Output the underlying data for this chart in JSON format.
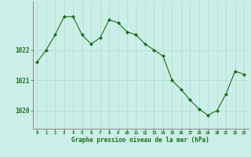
{
  "x": [
    0,
    1,
    2,
    3,
    4,
    5,
    6,
    7,
    8,
    9,
    10,
    11,
    12,
    13,
    14,
    15,
    16,
    17,
    18,
    19,
    20,
    21,
    22,
    23
  ],
  "y": [
    1021.6,
    1022.0,
    1022.5,
    1023.1,
    1023.1,
    1022.5,
    1022.2,
    1022.4,
    1023.0,
    1022.9,
    1022.6,
    1022.5,
    1022.2,
    1022.0,
    1021.8,
    1021.0,
    1020.7,
    1020.35,
    1020.05,
    1019.85,
    1020.0,
    1020.55,
    1021.3,
    1021.2
  ],
  "line_color": "#1a6e1a",
  "marker_color": "#1a6e1a",
  "bg_color": "#cceee8",
  "grid_color": "#aaddcc",
  "axis_color": "#888888",
  "xlabel": "Graphe pression niveau de la mer (hPa)",
  "xlabel_color": "#1a6e1a",
  "tick_color": "#1a6e1a",
  "ylabel_ticks": [
    1020,
    1021,
    1022
  ],
  "ylim": [
    1019.4,
    1023.6
  ],
  "xlim": [
    -0.5,
    23.5
  ]
}
